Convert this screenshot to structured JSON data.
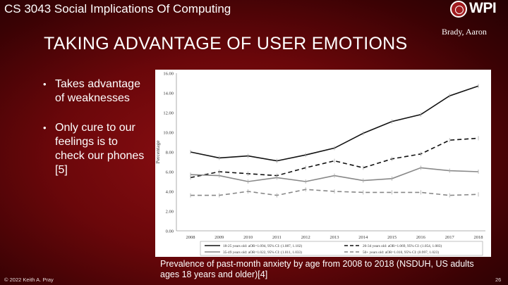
{
  "header": {
    "course_title": "CS 3043 Social Implications Of Computing",
    "logo_text": "WPI",
    "author": "Brady, Aaron"
  },
  "slide": {
    "title": "TAKING ADVANTAGE OF USER EMOTIONS",
    "bullets": [
      "Takes advantage of weaknesses",
      "Only cure to our feelings is to check our phones  [5]"
    ],
    "caption": "Prevalence of past-month anxiety by age from 2008 to 2018 (NSDUH, US adults ages 18 years and older)[4]"
  },
  "footer": {
    "copyright": "© 2022 Keith A. Pray",
    "page_number": "26"
  },
  "chart_data": {
    "type": "line",
    "title": "",
    "xlabel": "",
    "ylabel": "Percentage",
    "categories": [
      "2008",
      "2009",
      "2010",
      "2011",
      "2012",
      "2013",
      "2014",
      "2015",
      "2016",
      "2017",
      "2018"
    ],
    "ylim": [
      0,
      16
    ],
    "yticks": [
      "0.00",
      "2.00",
      "4.00",
      "6.00",
      "8.00",
      "10.00",
      "12.00",
      "14.00",
      "16.00"
    ],
    "series": [
      {
        "name": "18-25 years old: aOR=1.094, 95% CI: (1.087, 1.102)",
        "style": "solid",
        "color": "#111111",
        "values": [
          8.0,
          7.4,
          7.6,
          7.1,
          7.7,
          8.4,
          9.9,
          11.1,
          11.8,
          13.7,
          14.7
        ]
      },
      {
        "name": "26-34 years old: aOR=1.069, 95% CI: (1.054, 1.083)",
        "style": "dashed",
        "color": "#111111",
        "values": [
          5.4,
          6.0,
          5.8,
          5.6,
          6.4,
          7.1,
          6.4,
          7.3,
          7.8,
          9.2,
          9.4
        ]
      },
      {
        "name": "35-49 years old: aOR=1.022, 95% CI: (1.011, 1.033)",
        "style": "solid",
        "color": "#888888",
        "values": [
          5.7,
          5.6,
          5.0,
          5.4,
          5.0,
          5.6,
          5.1,
          5.3,
          6.4,
          6.1,
          6.0
        ]
      },
      {
        "name": "50+ years old: aOR=1.010, 95% CI: (0.997, 1.023)",
        "style": "dashed",
        "color": "#888888",
        "values": [
          3.6,
          3.6,
          4.0,
          3.6,
          4.2,
          4.0,
          3.9,
          3.9,
          3.9,
          3.6,
          3.7
        ]
      }
    ]
  }
}
